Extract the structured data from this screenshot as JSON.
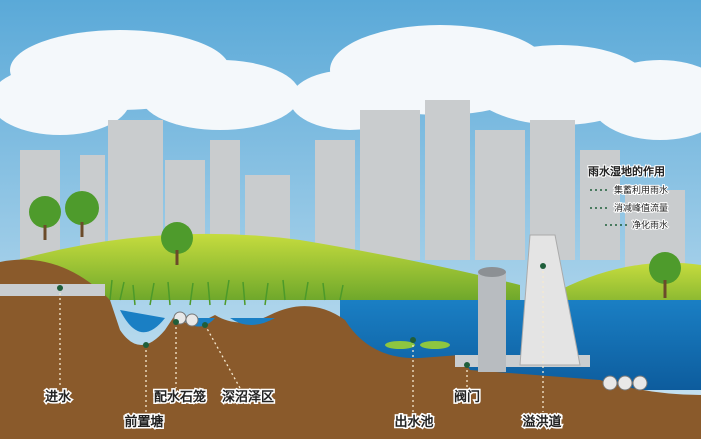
{
  "legend": {
    "title": "雨水湿地的作用",
    "items": [
      "集蓄利用雨水",
      "消减峰值流量",
      "净化雨水"
    ]
  },
  "labels": [
    "进水",
    "前置塘",
    "配水石笼",
    "深沼泽区",
    "出水池",
    "阀门",
    "溢洪道"
  ]
}
